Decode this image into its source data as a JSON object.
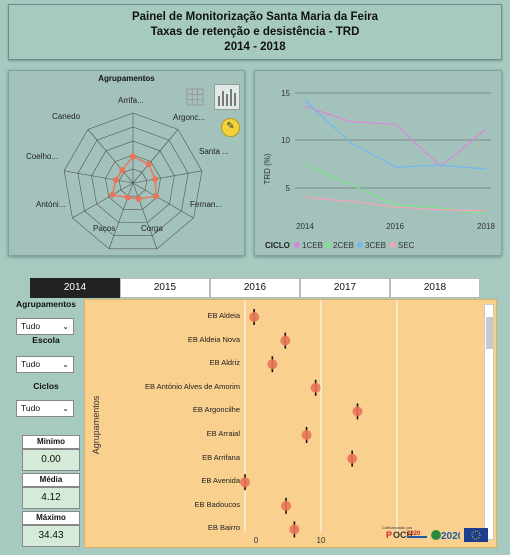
{
  "header": {
    "line1": "Painel de Monitorização Santa Maria da Feira",
    "line2": "Taxas de retenção e desistência - TRD",
    "line3": "2014 - 2018"
  },
  "radar": {
    "title": "Agrupamentos",
    "labels": [
      "Arrifa...",
      "Argonc...",
      "Santa ...",
      "Fernan...",
      "Corga",
      "Paços",
      "Antóni...",
      "Coelho...",
      "Canedo"
    ]
  },
  "line_chart": {
    "ylabel": "TRD (%)",
    "yticks": [
      "15",
      "10",
      "5"
    ],
    "xticks": [
      "2014",
      "2016",
      "2018"
    ],
    "legend_title": "CICLO",
    "legend": [
      "1CEB",
      "2CEB",
      "3CEB",
      "SEC"
    ]
  },
  "tabs": [
    "2014",
    "2015",
    "2016",
    "2017",
    "2018"
  ],
  "filters": {
    "agrupamentos_label": "Agrupamentos",
    "agrupamentos_value": "Tudo",
    "escola_label": "Escola",
    "escola_value": "Tudo",
    "ciclos_label": "Ciclos",
    "ciclos_value": "Tudo"
  },
  "kpis": {
    "min_label": "Mínimo",
    "min_value": "0.00",
    "avg_label": "Média",
    "avg_value": "4.12",
    "max_label": "Máximo",
    "max_value": "34.43"
  },
  "dot_plot": {
    "ylabel": "Agrupamentos",
    "xticks": [
      "0",
      "10"
    ],
    "rows": [
      "EB Aldeia",
      "EB Aldeia Nova",
      "EB Aldriz",
      "EB António Alves de Amorim",
      "EB Argoncilhe",
      "EB Arraial",
      "EB Arrifana",
      "EB Avenida",
      "EB Badoucos",
      "EB Bairro"
    ]
  },
  "chart_data": [
    {
      "type": "line",
      "x": [
        2014,
        2015,
        2016,
        2017,
        2018
      ],
      "ylabel": "TRD (%)",
      "ylim": [
        2,
        16
      ],
      "legend_title": "CICLO",
      "series": [
        {
          "name": "1CEB",
          "color": "#d98ad6",
          "values": [
            13.6,
            12.0,
            11.7,
            7.3,
            11.2
          ]
        },
        {
          "name": "2CEB",
          "color": "#7ee38a",
          "values": [
            7.5,
            5.4,
            3.2,
            2.9,
            2.3
          ]
        },
        {
          "name": "3CEB",
          "color": "#74b8ec",
          "values": [
            14.2,
            9.8,
            7.2,
            7.4,
            7.0
          ]
        },
        {
          "name": "SEC",
          "color": "#f0a6b8",
          "values": [
            4.0,
            3.6,
            3.0,
            2.7,
            2.6
          ]
        }
      ]
    },
    {
      "type": "scatter",
      "ylabel": "Agrupamentos",
      "xlim": [
        0,
        21
      ],
      "categories": [
        "EB Aldeia",
        "EB Aldeia Nova",
        "EB Aldriz",
        "EB António Alves de Amorim",
        "EB Argoncilhe",
        "EB Arraial",
        "EB Arrifana",
        "EB Avenida",
        "EB Badoucos",
        "EB Bairro"
      ],
      "values": [
        1.2,
        5.3,
        3.6,
        9.3,
        14.8,
        8.1,
        14.1,
        0.0,
        5.4,
        6.5
      ]
    }
  ]
}
